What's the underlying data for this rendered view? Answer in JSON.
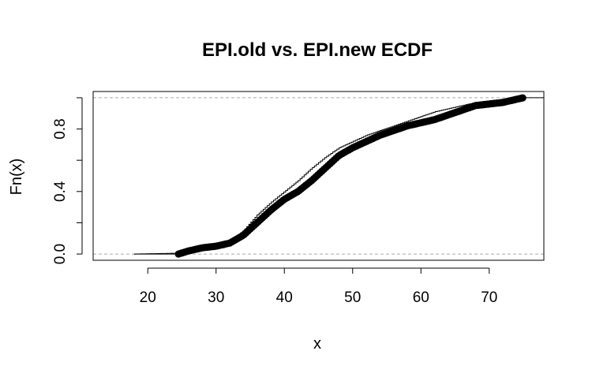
{
  "chart_data": {
    "type": "scatter",
    "title": "EPI.old vs. EPI.new ECDF",
    "xlabel": "x",
    "ylabel": "Fn(x)",
    "xlim": [
      12,
      78
    ],
    "ylim": [
      -0.04,
      1.04
    ],
    "x_ticks": [
      "20",
      "30",
      "40",
      "50",
      "60",
      "70"
    ],
    "y_ticks": [
      "0.0",
      "0.4",
      "0.8"
    ],
    "y_minor_ticks": [
      0.2,
      0.6,
      1.0
    ],
    "reference_lines": [
      0,
      1
    ],
    "series": [
      {
        "style": "points",
        "cdf_knots": [
          [
            24.5,
            0.0
          ],
          [
            26.0,
            0.02
          ],
          [
            28.0,
            0.04
          ],
          [
            30.0,
            0.05
          ],
          [
            32.0,
            0.07
          ],
          [
            34.0,
            0.12
          ],
          [
            36.0,
            0.2
          ],
          [
            38.0,
            0.28
          ],
          [
            40.0,
            0.35
          ],
          [
            42.0,
            0.4
          ],
          [
            44.0,
            0.47
          ],
          [
            46.0,
            0.55
          ],
          [
            48.0,
            0.63
          ],
          [
            50.0,
            0.68
          ],
          [
            52.0,
            0.72
          ],
          [
            54.0,
            0.76
          ],
          [
            56.0,
            0.79
          ],
          [
            58.0,
            0.82
          ],
          [
            60.0,
            0.84
          ],
          [
            62.0,
            0.86
          ],
          [
            64.0,
            0.89
          ],
          [
            66.0,
            0.92
          ],
          [
            68.0,
            0.95
          ],
          [
            70.0,
            0.96
          ],
          [
            72.0,
            0.97
          ],
          [
            75.0,
            1.0
          ]
        ]
      },
      {
        "style": "step-line",
        "cdf_knots": [
          [
            18.0,
            0.0
          ],
          [
            24.0,
            0.005
          ],
          [
            28.0,
            0.04
          ],
          [
            30.0,
            0.05
          ],
          [
            32.0,
            0.08
          ],
          [
            34.0,
            0.15
          ],
          [
            36.0,
            0.25
          ],
          [
            38.0,
            0.33
          ],
          [
            40.0,
            0.4
          ],
          [
            42.0,
            0.47
          ],
          [
            44.0,
            0.55
          ],
          [
            46.0,
            0.62
          ],
          [
            48.0,
            0.68
          ],
          [
            50.0,
            0.72
          ],
          [
            52.0,
            0.76
          ],
          [
            54.0,
            0.79
          ],
          [
            56.0,
            0.82
          ],
          [
            58.0,
            0.85
          ],
          [
            60.0,
            0.88
          ],
          [
            62.0,
            0.91
          ],
          [
            64.0,
            0.93
          ],
          [
            66.0,
            0.95
          ],
          [
            68.0,
            0.97
          ],
          [
            70.0,
            0.98
          ],
          [
            72.0,
            0.99
          ],
          [
            75.0,
            1.0
          ]
        ]
      }
    ]
  }
}
